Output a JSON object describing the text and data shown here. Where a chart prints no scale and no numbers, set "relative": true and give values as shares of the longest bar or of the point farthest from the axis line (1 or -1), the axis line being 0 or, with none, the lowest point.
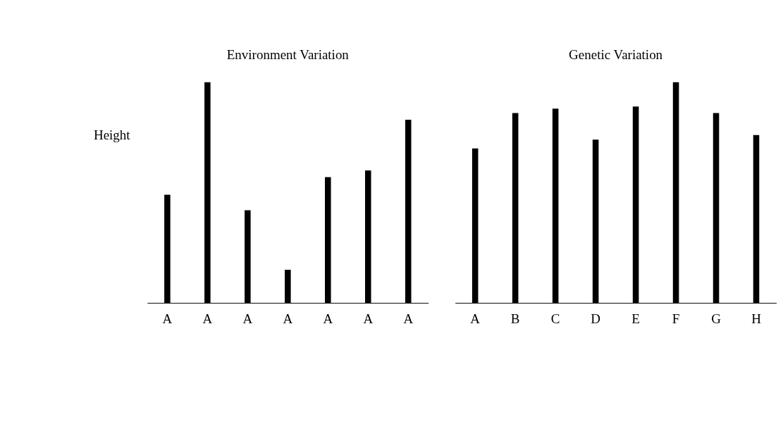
{
  "chart_data": [
    {
      "type": "bar",
      "title": "Environment Variation",
      "ylabel": "Height",
      "relative": true,
      "color": "#000000",
      "categories": [
        "A",
        "A",
        "A",
        "A",
        "A",
        "A",
        "A"
      ],
      "values": [
        0.49,
        1,
        0.42,
        0.15,
        0.57,
        0.6,
        0.83
      ]
    },
    {
      "type": "bar",
      "title": "Genetic Variation",
      "relative": true,
      "color": "#000000",
      "categories": [
        "A",
        "B",
        "C",
        "D",
        "E",
        "F",
        "G",
        "H"
      ],
      "values": [
        0.7,
        0.86,
        0.88,
        0.74,
        0.89,
        1,
        0.86,
        0.76
      ]
    }
  ]
}
